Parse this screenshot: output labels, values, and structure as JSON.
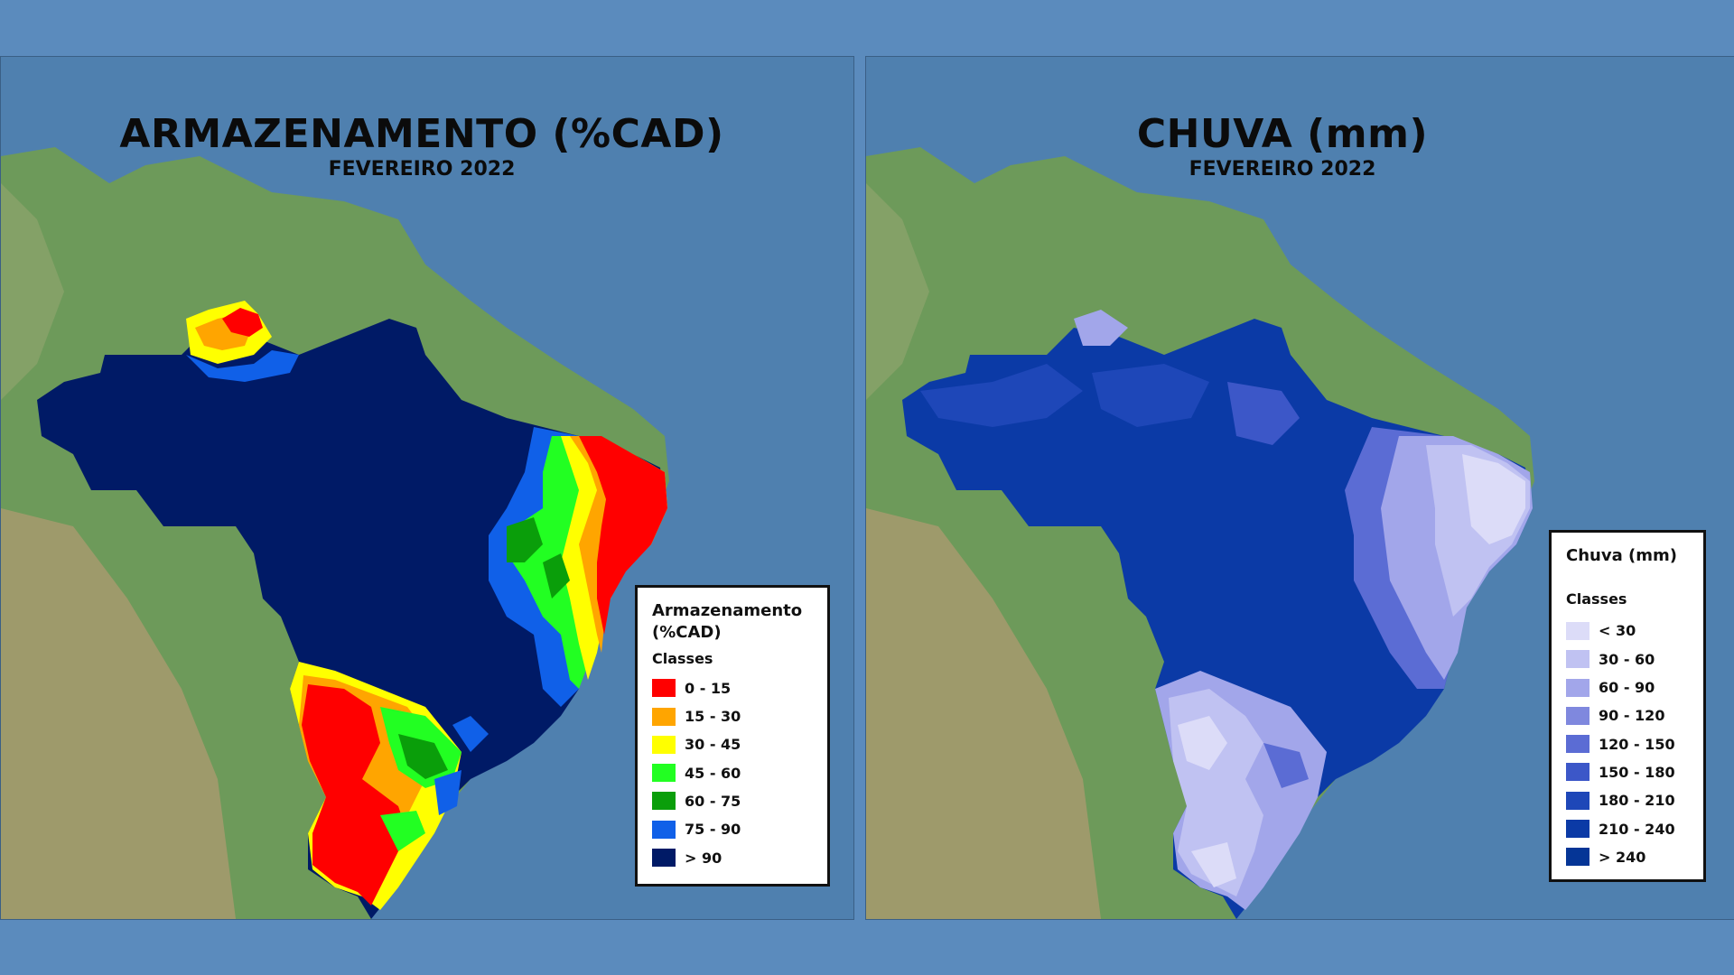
{
  "maps": [
    {
      "title": "ARMAZENAMENTO (%CAD)",
      "subtitle": "FEVEREIRO 2022",
      "legend": {
        "title_line1": "Armazenamento",
        "title_line2": "(%CAD)",
        "classes_label": "Classes",
        "items": [
          {
            "label": "0 - 15",
            "color": "#ff0000"
          },
          {
            "label": "15 - 30",
            "color": "#ffa500"
          },
          {
            "label": "30 - 45",
            "color": "#ffff00"
          },
          {
            "label": "45 - 60",
            "color": "#22ff22"
          },
          {
            "label": "60 - 75",
            "color": "#0a9e0a"
          },
          {
            "label": "75 - 90",
            "color": "#1060e8"
          },
          {
            "label": "> 90",
            "color": "#001a66"
          }
        ]
      }
    },
    {
      "title": "CHUVA (mm)",
      "subtitle": "FEVEREIRO 2022",
      "legend": {
        "title_line1": "Chuva (mm)",
        "classes_label": "Classes",
        "items": [
          {
            "label": "< 30",
            "color": "#dcdcf8"
          },
          {
            "label": "30 - 60",
            "color": "#c0c2f2"
          },
          {
            "label": "60 - 90",
            "color": "#a2a6ea"
          },
          {
            "label": "90 - 120",
            "color": "#7f88de"
          },
          {
            "label": "120 - 150",
            "color": "#5b6cd4"
          },
          {
            "label": "150 - 180",
            "color": "#3c57c8"
          },
          {
            "label": "180 - 210",
            "color": "#1e47b8"
          },
          {
            "label": "210 - 240",
            "color": "#0b3aa6"
          },
          {
            "label": "> 240",
            "color": "#053596"
          }
        ]
      }
    }
  ]
}
